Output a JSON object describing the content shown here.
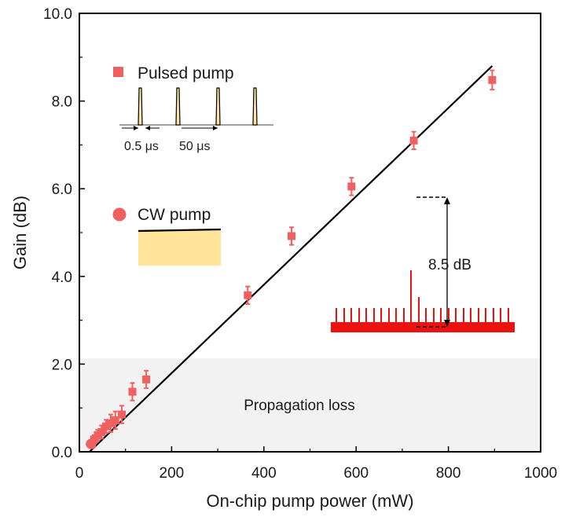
{
  "chart_data": {
    "type": "scatter",
    "xlabel": "On-chip pump power (mW)",
    "ylabel": "Gain (dB)",
    "xlim": [
      0,
      1000
    ],
    "ylim": [
      0,
      10
    ],
    "x_ticks": [
      0,
      200,
      400,
      600,
      800,
      1000
    ],
    "x_tick_labels": [
      "0",
      "200",
      "400",
      "600",
      "800",
      "1000"
    ],
    "y_ticks": [
      0,
      2,
      4,
      6,
      8,
      10
    ],
    "y_tick_labels": [
      "0.0",
      "2.0",
      "4.0",
      "6.0",
      "8.0",
      "10.0"
    ],
    "series": [
      {
        "name": "Pulsed pump",
        "marker": "square",
        "color": "#f06060",
        "x": [
          27,
          32,
          40,
          48,
          58,
          68,
          78,
          92,
          115,
          145,
          365,
          460,
          590,
          725,
          895
        ],
        "y": [
          0.18,
          0.28,
          0.38,
          0.45,
          0.58,
          0.65,
          0.72,
          0.85,
          1.37,
          1.65,
          3.57,
          4.92,
          6.05,
          7.1,
          8.48
        ],
        "err": [
          0.1,
          0.1,
          0.12,
          0.15,
          0.15,
          0.2,
          0.2,
          0.2,
          0.2,
          0.2,
          0.2,
          0.2,
          0.2,
          0.2,
          0.22
        ]
      },
      {
        "name": "CW pump",
        "marker": "circle",
        "color": "#f06060",
        "x": [
          25
        ],
        "y": [
          0.18
        ],
        "err": []
      }
    ],
    "fit_line": {
      "x": [
        22,
        895
      ],
      "y": [
        0.0,
        8.8
      ],
      "color": "#000000"
    },
    "shaded_region": {
      "label": "Propagation loss",
      "y_range": [
        0,
        2.13
      ],
      "color": "#f2f2f2"
    },
    "inset_pulse": {
      "labels": [
        "0.5 μs",
        "50 μs"
      ],
      "color": "#ffe49a"
    },
    "inset_cw": {
      "color": "#ffe49a"
    },
    "inset_spectrum": {
      "annotation": "8.5 dB",
      "color": "#ee1111"
    }
  }
}
